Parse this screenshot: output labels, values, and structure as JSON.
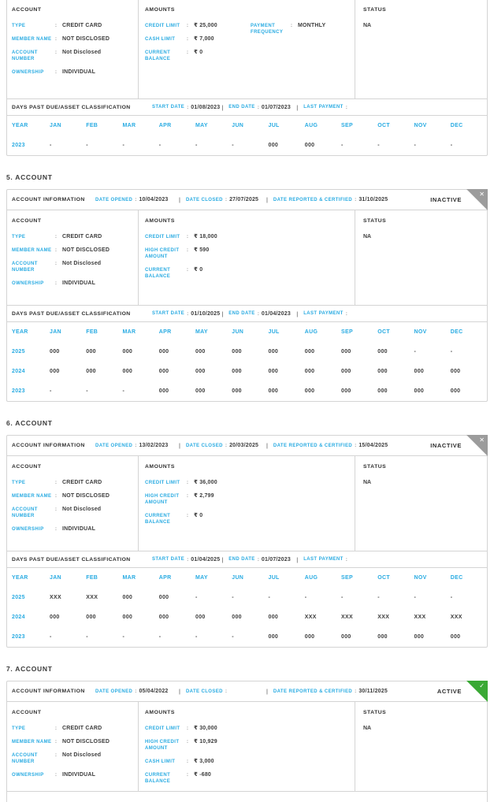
{
  "colors": {
    "accent": "#29abe2",
    "active": "#3aa935",
    "inactive": "#9c9c9c",
    "text": "#3d3d3d",
    "border": "#d4d4d4"
  },
  "icons": {
    "inactive": "✕",
    "active": "✓"
  },
  "labels": {
    "account_information": "ACCOUNT INFORMATION",
    "date_opened": "DATE OPENED",
    "date_closed": "DATE CLOSED",
    "date_reported": "DATE REPORTED & CERTIFIED",
    "account_col": "ACCOUNT",
    "amounts_col": "AMOUNTS",
    "status_col": "STATUS",
    "dpd_title": "DAYS PAST DUE/ASSET CLASSIFICATION",
    "start_date": "START DATE",
    "end_date": "END DATE",
    "last_payment": "LAST PAYMENT",
    "year": "YEAR"
  },
  "months": [
    "JAN",
    "FEB",
    "MAR",
    "APR",
    "MAY",
    "JUN",
    "JUL",
    "AUG",
    "SEP",
    "OCT",
    "NOV",
    "DEC"
  ],
  "accounts": [
    {
      "partial": true,
      "title": "",
      "header": null,
      "account_fields": [
        {
          "label": "TYPE",
          "value": "CREDIT CARD"
        },
        {
          "label": "MEMBER NAME",
          "value": "NOT DISCLOSED"
        },
        {
          "label": "ACCOUNT NUMBER",
          "value": "Not Disclosed"
        },
        {
          "label": "OWNERSHIP",
          "value": "INDIVIDUAL"
        }
      ],
      "amount_fields": [
        {
          "label": "CREDIT LIMIT",
          "value": "₹ 25,000"
        },
        {
          "label": "CASH LIMIT",
          "value": "₹ 7,000"
        },
        {
          "label": "CURRENT BALANCE",
          "value": "₹ 0"
        }
      ],
      "amount_fields_col2": [
        {
          "label": "PAYMENT FREQUENCY",
          "value": "MONTHLY"
        }
      ],
      "status": "NA",
      "dpd": {
        "start_date": "01/08/2023",
        "end_date": "01/07/2023",
        "last_payment": "",
        "rows": [
          {
            "year": "2023",
            "values": [
              "-",
              "-",
              "-",
              "-",
              "-",
              "-",
              "000",
              "000",
              "-",
              "-",
              "-",
              "-"
            ]
          }
        ]
      }
    },
    {
      "partial": false,
      "title": "5. ACCOUNT",
      "header": {
        "date_opened": "10/04/2023",
        "date_closed": "27/07/2025",
        "date_reported": "31/10/2025",
        "status": "INACTIVE",
        "status_kind": "inactive"
      },
      "account_fields": [
        {
          "label": "TYPE",
          "value": "CREDIT CARD"
        },
        {
          "label": "MEMBER NAME",
          "value": "NOT DISCLOSED"
        },
        {
          "label": "ACCOUNT NUMBER",
          "value": "Not Disclosed"
        },
        {
          "label": "OWNERSHIP",
          "value": "INDIVIDUAL"
        }
      ],
      "amount_fields": [
        {
          "label": "CREDIT LIMIT",
          "value": "₹ 18,000"
        },
        {
          "label": "HIGH CREDIT AMOUNT",
          "value": "₹ 590"
        },
        {
          "label": "CURRENT BALANCE",
          "value": "₹ 0"
        }
      ],
      "amount_fields_col2": [],
      "status": "NA",
      "dpd": {
        "start_date": "01/10/2025",
        "end_date": "01/04/2023",
        "last_payment": "",
        "rows": [
          {
            "year": "2025",
            "values": [
              "000",
              "000",
              "000",
              "000",
              "000",
              "000",
              "000",
              "000",
              "000",
              "000",
              "-",
              "-"
            ]
          },
          {
            "year": "2024",
            "values": [
              "000",
              "000",
              "000",
              "000",
              "000",
              "000",
              "000",
              "000",
              "000",
              "000",
              "000",
              "000"
            ]
          },
          {
            "year": "2023",
            "values": [
              "-",
              "-",
              "-",
              "000",
              "000",
              "000",
              "000",
              "000",
              "000",
              "000",
              "000",
              "000"
            ]
          }
        ]
      }
    },
    {
      "partial": false,
      "title": "6. ACCOUNT",
      "header": {
        "date_opened": "13/02/2023",
        "date_closed": "20/03/2025",
        "date_reported": "15/04/2025",
        "status": "INACTIVE",
        "status_kind": "inactive"
      },
      "account_fields": [
        {
          "label": "TYPE",
          "value": "CREDIT CARD"
        },
        {
          "label": "MEMBER NAME",
          "value": "NOT DISCLOSED"
        },
        {
          "label": "ACCOUNT NUMBER",
          "value": "Not Disclosed"
        },
        {
          "label": "OWNERSHIP",
          "value": "INDIVIDUAL"
        }
      ],
      "amount_fields": [
        {
          "label": "CREDIT LIMIT",
          "value": "₹ 36,000"
        },
        {
          "label": "HIGH CREDIT AMOUNT",
          "value": "₹ 2,799"
        },
        {
          "label": "CURRENT BALANCE",
          "value": "₹ 0"
        }
      ],
      "amount_fields_col2": [],
      "status": "NA",
      "dpd": {
        "start_date": "01/04/2025",
        "end_date": "01/07/2023",
        "last_payment": "",
        "rows": [
          {
            "year": "2025",
            "values": [
              "XXX",
              "XXX",
              "000",
              "000",
              "-",
              "-",
              "-",
              "-",
              "-",
              "-",
              "-",
              "-"
            ]
          },
          {
            "year": "2024",
            "values": [
              "000",
              "000",
              "000",
              "000",
              "000",
              "000",
              "000",
              "XXX",
              "XXX",
              "XXX",
              "XXX",
              "XXX"
            ]
          },
          {
            "year": "2023",
            "values": [
              "-",
              "-",
              "-",
              "-",
              "-",
              "-",
              "000",
              "000",
              "000",
              "000",
              "000",
              "000"
            ]
          }
        ]
      }
    },
    {
      "partial": false,
      "short_detail": true,
      "title": "7. ACCOUNT",
      "header": {
        "date_opened": "05/04/2022",
        "date_closed": "",
        "date_reported": "30/11/2025",
        "status": "ACTIVE",
        "status_kind": "active"
      },
      "account_fields": [
        {
          "label": "TYPE",
          "value": "CREDIT CARD"
        },
        {
          "label": "MEMBER NAME",
          "value": "NOT DISCLOSED"
        },
        {
          "label": "ACCOUNT NUMBER",
          "value": "Not Disclosed"
        },
        {
          "label": "OWNERSHIP",
          "value": "INDIVIDUAL"
        }
      ],
      "amount_fields": [
        {
          "label": "CREDIT LIMIT",
          "value": "₹ 30,000"
        },
        {
          "label": "HIGH CREDIT AMOUNT",
          "value": "₹ 10,929"
        },
        {
          "label": "CASH LIMIT",
          "value": "₹ 3,000"
        },
        {
          "label": "CURRENT BALANCE",
          "value": "₹ -680"
        }
      ],
      "amount_fields_col2": [],
      "status": "NA",
      "dpd": null,
      "dpd_stub": true
    }
  ]
}
